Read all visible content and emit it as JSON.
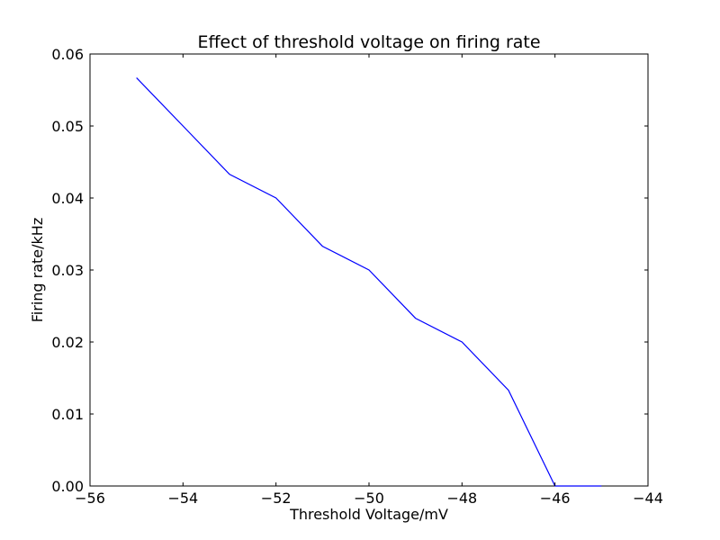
{
  "chart_data": {
    "type": "line",
    "title": "Effect of threshold voltage on firing rate",
    "xlabel": "Threshold Voltage/mV",
    "ylabel": "Firing rate/kHz",
    "xlim": [
      -56,
      -44
    ],
    "ylim": [
      0,
      0.06
    ],
    "x_ticks": [
      -56,
      -54,
      -52,
      -50,
      -48,
      -46,
      -44
    ],
    "x_tick_labels": [
      "−56",
      "−54",
      "−52",
      "−50",
      "−48",
      "−46",
      "−44"
    ],
    "y_ticks": [
      0.0,
      0.01,
      0.02,
      0.03,
      0.04,
      0.05,
      0.06
    ],
    "y_tick_labels": [
      "0.00",
      "0.01",
      "0.02",
      "0.03",
      "0.04",
      "0.05",
      "0.06"
    ],
    "grid": false,
    "legend": "none",
    "series": [
      {
        "color": "#0000ff",
        "x": [
          -55,
          -54,
          -53,
          -52,
          -51,
          -50,
          -49,
          -48,
          -47,
          -46,
          -45
        ],
        "y": [
          0.0567,
          0.05,
          0.0433,
          0.04,
          0.0333,
          0.03,
          0.0233,
          0.02,
          0.0133,
          0.0,
          0.0
        ]
      }
    ]
  }
}
